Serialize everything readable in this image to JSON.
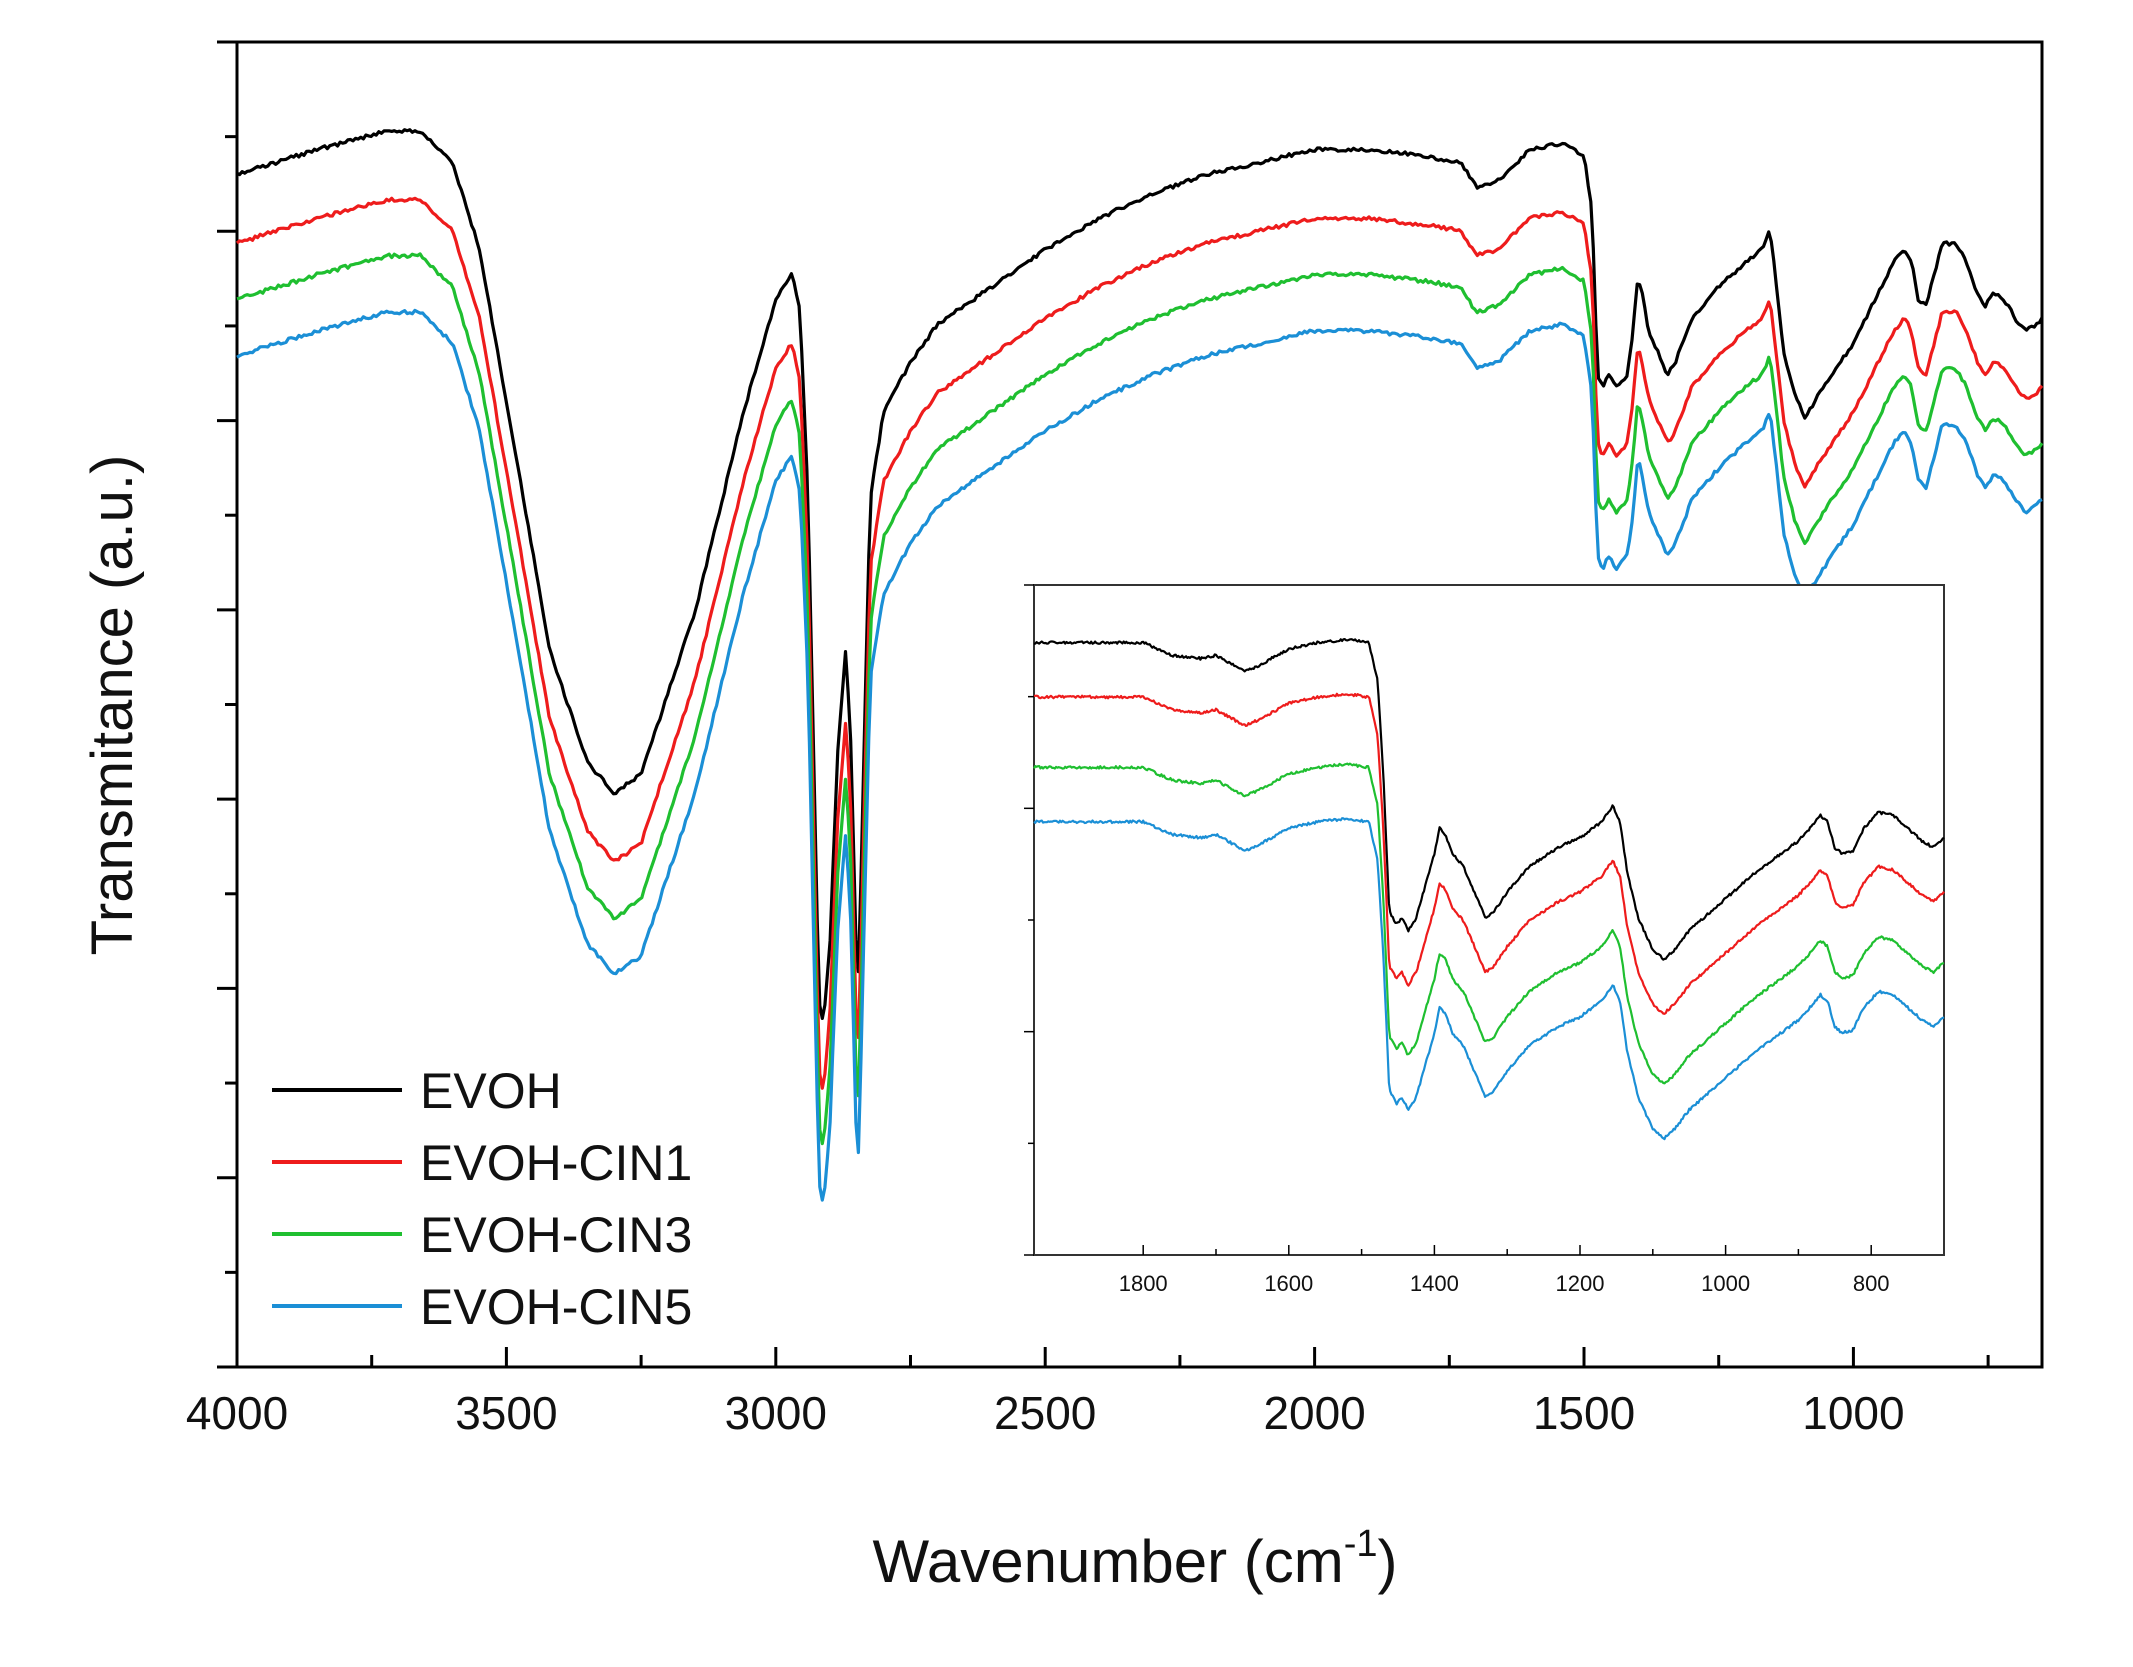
{
  "chart_data": [
    {
      "id": "main",
      "type": "line",
      "xlabel": "Wavenumber (cm",
      "xlabel_sup": "-1",
      "xlabel_close": ")",
      "ylabel": "Transmitance (a.u.)",
      "xlim": [
        4000,
        650
      ],
      "ylim": [
        0,
        10
      ],
      "x_ticks": [
        4000,
        3500,
        3000,
        2500,
        2000,
        1500,
        1000
      ],
      "x_tick_labels": [
        "4000",
        "3500",
        "3000",
        "2500",
        "2000",
        "1500",
        "1000"
      ],
      "legend_position": "bottom-left",
      "legend": [
        "EVOH",
        "EVOH-CIN1",
        "EVOH-CIN3",
        "EVOH-CIN5"
      ],
      "series": [
        {
          "name": "EVOH",
          "color": "#000000",
          "offset": 0.0
        },
        {
          "name": "EVOH-CIN1",
          "color": "#ee1c1c",
          "offset": -0.55
        },
        {
          "name": "EVOH-CIN3",
          "color": "#1fbf30",
          "offset": -1.0
        },
        {
          "name": "EVOH-CIN5",
          "color": "#1b8fd6",
          "offset": -1.45
        }
      ],
      "base_curve": [
        [
          4000,
          9.1
        ],
        [
          3850,
          9.3
        ],
        [
          3720,
          9.45
        ],
        [
          3660,
          9.45
        ],
        [
          3600,
          9.2
        ],
        [
          3550,
          8.5
        ],
        [
          3480,
          6.8
        ],
        [
          3420,
          5.3
        ],
        [
          3350,
          4.4
        ],
        [
          3300,
          4.15
        ],
        [
          3250,
          4.3
        ],
        [
          3150,
          5.6
        ],
        [
          3060,
          7.2
        ],
        [
          3000,
          8.1
        ],
        [
          2970,
          8.3
        ],
        [
          2955,
          8.0
        ],
        [
          2940,
          6.5
        ],
        [
          2930,
          4.5
        ],
        [
          2920,
          2.5
        ],
        [
          2912,
          2.3
        ],
        [
          2900,
          2.9
        ],
        [
          2885,
          4.5
        ],
        [
          2870,
          5.3
        ],
        [
          2860,
          4.5
        ],
        [
          2852,
          3.0
        ],
        [
          2846,
          2.7
        ],
        [
          2838,
          4.2
        ],
        [
          2825,
          6.5
        ],
        [
          2800,
          7.2
        ],
        [
          2750,
          7.6
        ],
        [
          2700,
          7.9
        ],
        [
          2600,
          8.2
        ],
        [
          2500,
          8.5
        ],
        [
          2400,
          8.75
        ],
        [
          2300,
          8.95
        ],
        [
          2200,
          9.1
        ],
        [
          2100,
          9.2
        ],
        [
          2000,
          9.3
        ],
        [
          1900,
          9.3
        ],
        [
          1800,
          9.25
        ],
        [
          1730,
          9.2
        ],
        [
          1700,
          9.0
        ],
        [
          1660,
          9.05
        ],
        [
          1600,
          9.3
        ],
        [
          1540,
          9.35
        ],
        [
          1500,
          9.25
        ],
        [
          1485,
          8.8
        ],
        [
          1475,
          7.5
        ],
        [
          1465,
          7.4
        ],
        [
          1455,
          7.5
        ],
        [
          1440,
          7.4
        ],
        [
          1420,
          7.5
        ],
        [
          1410,
          7.8
        ],
        [
          1400,
          8.3
        ],
        [
          1390,
          8.1
        ],
        [
          1380,
          7.85
        ],
        [
          1365,
          7.7
        ],
        [
          1345,
          7.5
        ],
        [
          1330,
          7.6
        ],
        [
          1300,
          7.95
        ],
        [
          1250,
          8.2
        ],
        [
          1200,
          8.4
        ],
        [
          1170,
          8.5
        ],
        [
          1155,
          8.65
        ],
        [
          1145,
          8.3
        ],
        [
          1130,
          7.7
        ],
        [
          1110,
          7.35
        ],
        [
          1090,
          7.15
        ],
        [
          1070,
          7.3
        ],
        [
          1040,
          7.5
        ],
        [
          1000,
          7.75
        ],
        [
          960,
          8.1
        ],
        [
          925,
          8.4
        ],
        [
          905,
          8.5
        ],
        [
          892,
          8.4
        ],
        [
          880,
          8.1
        ],
        [
          865,
          8.05
        ],
        [
          850,
          8.3
        ],
        [
          835,
          8.55
        ],
        [
          810,
          8.55
        ],
        [
          790,
          8.4
        ],
        [
          770,
          8.15
        ],
        [
          755,
          8.05
        ],
        [
          740,
          8.15
        ],
        [
          720,
          8.1
        ],
        [
          700,
          7.95
        ],
        [
          680,
          7.85
        ],
        [
          660,
          7.9
        ],
        [
          650,
          7.95
        ]
      ]
    },
    {
      "id": "inset",
      "type": "line",
      "position": "inset-right",
      "xlim": [
        1950,
        700
      ],
      "ylim": [
        0,
        10
      ],
      "x_ticks": [
        1800,
        1600,
        1400,
        1200,
        1000,
        800
      ],
      "x_tick_labels": [
        "1800",
        "1600",
        "1400",
        "1200",
        "1000",
        "800"
      ],
      "series": [
        {
          "name": "EVOH",
          "color": "#000000",
          "offset": 0.0
        },
        {
          "name": "EVOH-CIN1",
          "color": "#ee1c1c",
          "offset": -0.85
        },
        {
          "name": "EVOH-CIN3",
          "color": "#1fbf30",
          "offset": -1.95
        },
        {
          "name": "EVOH-CIN5",
          "color": "#1b8fd6",
          "offset": -2.8
        }
      ],
      "base_curve": [
        [
          1950,
          9.1
        ],
        [
          1850,
          9.1
        ],
        [
          1800,
          9.1
        ],
        [
          1760,
          8.9
        ],
        [
          1720,
          8.85
        ],
        [
          1700,
          8.9
        ],
        [
          1660,
          8.65
        ],
        [
          1640,
          8.75
        ],
        [
          1600,
          9.0
        ],
        [
          1560,
          9.1
        ],
        [
          1520,
          9.15
        ],
        [
          1490,
          9.1
        ],
        [
          1478,
          8.5
        ],
        [
          1470,
          7.0
        ],
        [
          1462,
          4.9
        ],
        [
          1452,
          4.7
        ],
        [
          1445,
          4.8
        ],
        [
          1436,
          4.6
        ],
        [
          1425,
          4.8
        ],
        [
          1415,
          5.2
        ],
        [
          1400,
          5.8
        ],
        [
          1393,
          6.2
        ],
        [
          1385,
          6.1
        ],
        [
          1375,
          5.8
        ],
        [
          1360,
          5.6
        ],
        [
          1345,
          5.2
        ],
        [
          1330,
          4.8
        ],
        [
          1318,
          4.9
        ],
        [
          1300,
          5.2
        ],
        [
          1270,
          5.6
        ],
        [
          1230,
          5.9
        ],
        [
          1200,
          6.05
        ],
        [
          1170,
          6.3
        ],
        [
          1155,
          6.55
        ],
        [
          1145,
          6.3
        ],
        [
          1135,
          5.5
        ],
        [
          1120,
          4.8
        ],
        [
          1100,
          4.3
        ],
        [
          1085,
          4.15
        ],
        [
          1070,
          4.3
        ],
        [
          1050,
          4.6
        ],
        [
          1020,
          4.9
        ],
        [
          990,
          5.2
        ],
        [
          960,
          5.5
        ],
        [
          930,
          5.75
        ],
        [
          900,
          6.0
        ],
        [
          880,
          6.25
        ],
        [
          870,
          6.4
        ],
        [
          860,
          6.3
        ],
        [
          850,
          5.9
        ],
        [
          840,
          5.8
        ],
        [
          825,
          5.85
        ],
        [
          810,
          6.2
        ],
        [
          790,
          6.45
        ],
        [
          770,
          6.4
        ],
        [
          750,
          6.2
        ],
        [
          730,
          6.0
        ],
        [
          715,
          5.9
        ],
        [
          700,
          6.05
        ]
      ]
    }
  ]
}
